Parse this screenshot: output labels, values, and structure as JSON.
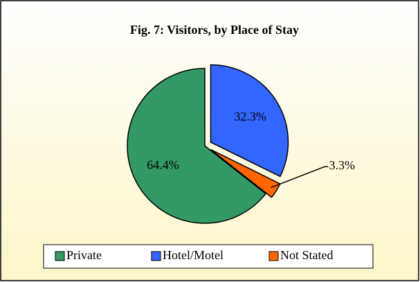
{
  "chart_data": {
    "type": "pie",
    "title": "Fig. 7: Visitors, by Place of Stay",
    "categories": [
      "Private",
      "Hotel/Motel",
      "Not Stated"
    ],
    "values": [
      64.4,
      32.3,
      3.3
    ],
    "value_labels": [
      "64.4%",
      "32.3%",
      "3.3%"
    ],
    "colors": [
      "#339966",
      "#3366ff",
      "#ff6600"
    ],
    "legend": "bottom"
  }
}
